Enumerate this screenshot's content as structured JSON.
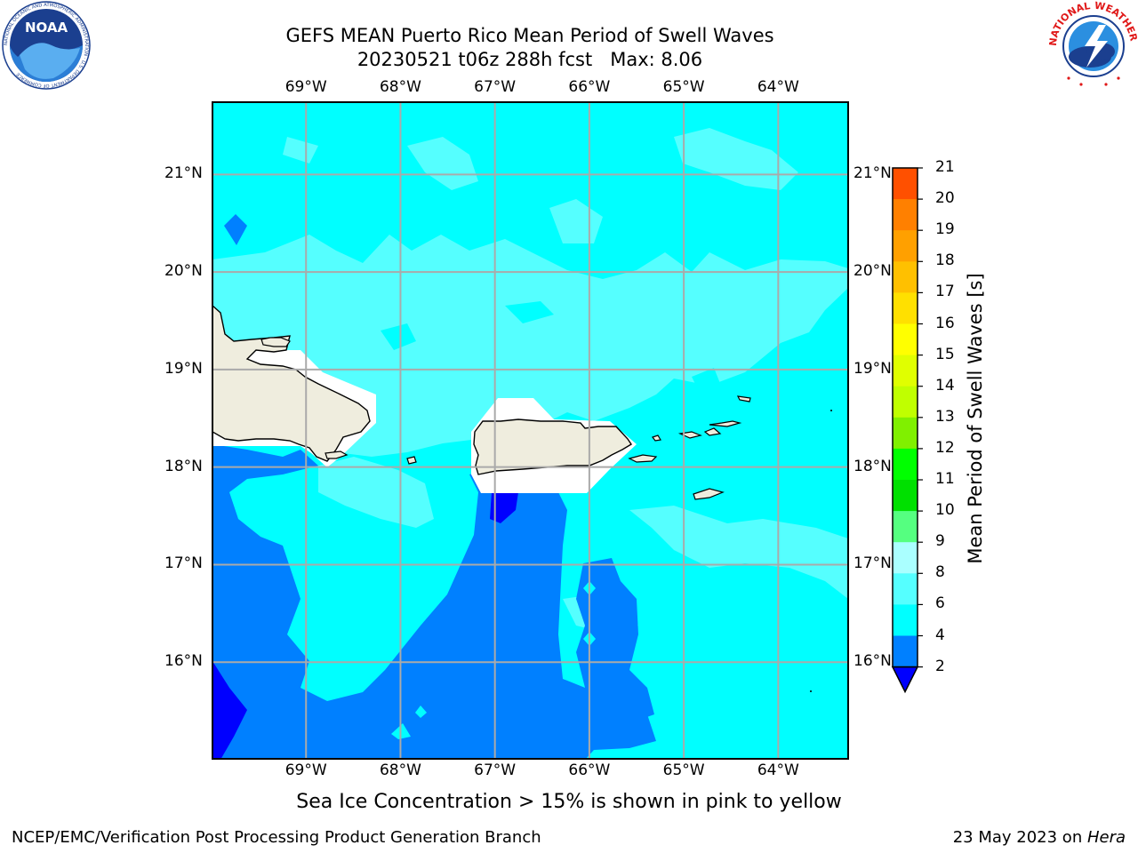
{
  "header": {
    "title_line1": "GEFS MEAN Puerto Rico Mean Period of Swell Waves",
    "title_line2": "20230521 t06z 288h fcst   Max: 8.06"
  },
  "logos": {
    "left": "noara-logo",
    "right": "nws-logo",
    "left_text": "NOAA",
    "left_ring_text": "NATIONAL OCEANIC AND ATMOSPHERIC ADMINISTRATION · U.S. DEPARTMENT OF COMMERCE",
    "right_ring_text": "NATIONAL WEATHER SERVICE"
  },
  "map": {
    "lon_labels": [
      "69°W",
      "68°W",
      "67°W",
      "66°W",
      "65°W",
      "64°W"
    ],
    "lat_labels": [
      "21°N",
      "20°N",
      "19°N",
      "18°N",
      "17°N",
      "16°N"
    ],
    "lon_values": [
      -69,
      -68,
      -67,
      -66,
      -65,
      -64
    ],
    "lat_values": [
      21,
      20,
      19,
      18,
      17,
      16
    ],
    "extent": {
      "lon_min": -70,
      "lon_max": -63.25,
      "lat_min": 15,
      "lat_max": 21.75
    },
    "grid": true,
    "colors": {
      "land": "#efedde",
      "coast": "#000000",
      "grid": "#aaaaaa"
    }
  },
  "colorbar": {
    "label": "Mean Period of Swell Waves [s]",
    "ticks": [
      "21",
      "20",
      "19",
      "18",
      "17",
      "16",
      "15",
      "14",
      "13",
      "12",
      "11",
      "10",
      "9",
      "8",
      "6",
      "4",
      "2"
    ],
    "levels": [
      2,
      4,
      6,
      8,
      9,
      10,
      11,
      12,
      13,
      14,
      15,
      16,
      17,
      18,
      19,
      20,
      21
    ],
    "colors": [
      "#0080ff",
      "#00ffff",
      "#55ffff",
      "#aaffff",
      "#55ff80",
      "#00e000",
      "#00ff00",
      "#80f000",
      "#c0ff00",
      "#e0ff00",
      "#ffff00",
      "#ffe000",
      "#ffc000",
      "#ffa000",
      "#ff8000",
      "#ff5000",
      "#ff2000",
      "#ff0000"
    ],
    "under_color": "#0000ff"
  },
  "caption": "Sea Ice Concentration > 15% is shown in pink to yellow",
  "footer": {
    "left": "NCEP/EMC/Verification Post Processing Product Generation Branch",
    "right_prefix": "23 May 2023 on ",
    "right_host": "Hera"
  }
}
